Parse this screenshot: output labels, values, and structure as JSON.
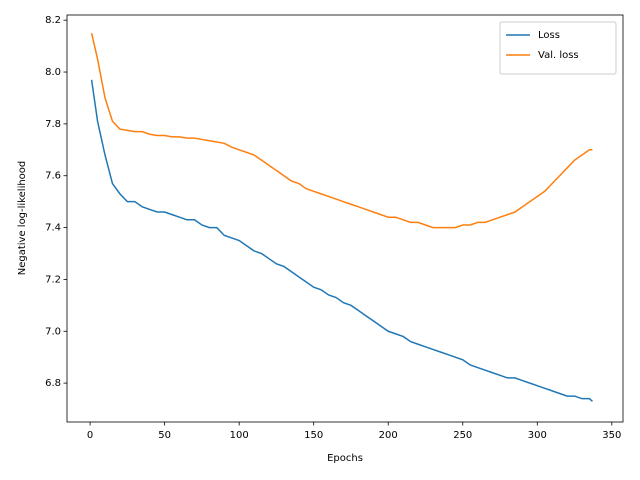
{
  "chart_data": {
    "type": "line",
    "xlabel": "Epochs",
    "ylabel": "Negative log-likelihood",
    "x": [
      1,
      5,
      10,
      15,
      20,
      25,
      30,
      35,
      40,
      45,
      50,
      55,
      60,
      65,
      70,
      75,
      80,
      85,
      90,
      95,
      100,
      105,
      110,
      115,
      120,
      125,
      130,
      135,
      140,
      145,
      150,
      155,
      160,
      165,
      170,
      175,
      180,
      185,
      190,
      195,
      200,
      205,
      210,
      215,
      220,
      225,
      230,
      235,
      240,
      245,
      250,
      255,
      260,
      265,
      270,
      275,
      280,
      285,
      290,
      295,
      300,
      305,
      310,
      315,
      320,
      325,
      330,
      335,
      337
    ],
    "series": [
      {
        "name": "Loss",
        "color": "#1f77b4",
        "values": [
          7.97,
          7.81,
          7.68,
          7.57,
          7.53,
          7.5,
          7.5,
          7.48,
          7.47,
          7.46,
          7.46,
          7.45,
          7.44,
          7.43,
          7.43,
          7.41,
          7.4,
          7.4,
          7.37,
          7.36,
          7.35,
          7.33,
          7.31,
          7.3,
          7.28,
          7.26,
          7.25,
          7.23,
          7.21,
          7.19,
          7.17,
          7.16,
          7.14,
          7.13,
          7.11,
          7.1,
          7.08,
          7.06,
          7.04,
          7.02,
          7.0,
          6.99,
          6.98,
          6.96,
          6.95,
          6.94,
          6.93,
          6.92,
          6.91,
          6.9,
          6.89,
          6.87,
          6.86,
          6.85,
          6.84,
          6.83,
          6.82,
          6.82,
          6.81,
          6.8,
          6.79,
          6.78,
          6.77,
          6.76,
          6.75,
          6.75,
          6.74,
          6.74,
          6.73
        ]
      },
      {
        "name": "Val. loss",
        "color": "#ff7f0e",
        "values": [
          8.15,
          8.05,
          7.9,
          7.81,
          7.78,
          7.775,
          7.77,
          7.77,
          7.76,
          7.755,
          7.755,
          7.75,
          7.75,
          7.745,
          7.745,
          7.74,
          7.735,
          7.73,
          7.725,
          7.71,
          7.7,
          7.69,
          7.68,
          7.66,
          7.64,
          7.62,
          7.6,
          7.58,
          7.57,
          7.55,
          7.54,
          7.53,
          7.52,
          7.51,
          7.5,
          7.49,
          7.48,
          7.47,
          7.46,
          7.45,
          7.44,
          7.44,
          7.43,
          7.42,
          7.42,
          7.41,
          7.4,
          7.4,
          7.4,
          7.4,
          7.41,
          7.41,
          7.42,
          7.42,
          7.43,
          7.44,
          7.45,
          7.46,
          7.48,
          7.5,
          7.52,
          7.54,
          7.57,
          7.6,
          7.63,
          7.66,
          7.68,
          7.7,
          7.7
        ]
      }
    ],
    "xlim": [
      -15.5,
      357.5
    ],
    "xticks": [
      0,
      50,
      100,
      150,
      200,
      250,
      300,
      350
    ],
    "ylim": [
      6.65,
      8.22
    ],
    "yticks": [
      6.8,
      {
        "value": 7.0,
        "label": "7.0"
      },
      7.2,
      7.4,
      7.6,
      7.8,
      {
        "value": 8.0,
        "label": "8.0"
      },
      8.2
    ],
    "grid": false,
    "legend": "upper right"
  }
}
